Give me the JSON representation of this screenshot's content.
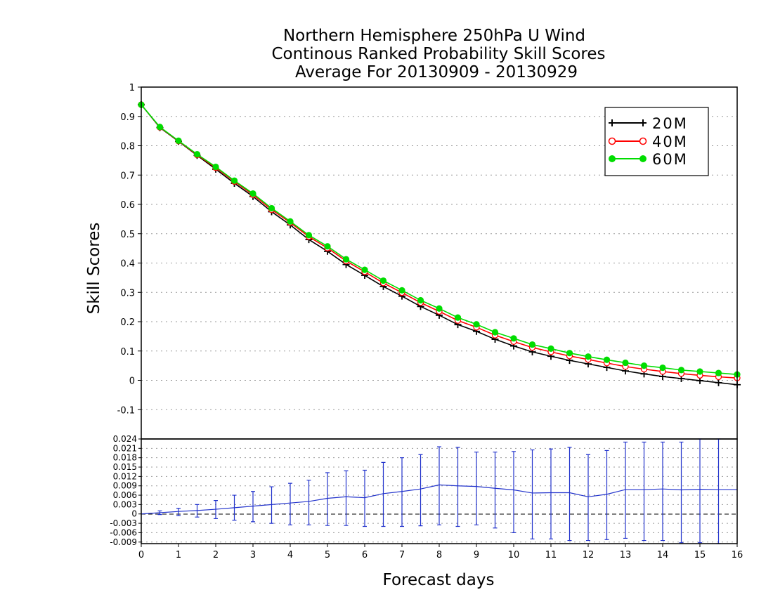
{
  "chart_data": [
    {
      "type": "line",
      "title": [
        "Northern Hemisphere 250hPa U Wind",
        "Continous Ranked Probability Skill Scores",
        "Average For 20130909 - 20130929"
      ],
      "xlabel": "Forecast days",
      "ylabel": "Skill Scores",
      "xlim": [
        0,
        16
      ],
      "ylim": [
        -0.2,
        1
      ],
      "yticks": [
        "1",
        "0.9",
        "0.8",
        "0.7",
        "0.6",
        "0.5",
        "0.4",
        "0.3",
        "0.2",
        "0.1",
        "0",
        "-0.1"
      ],
      "ytick_values": [
        1,
        0.9,
        0.8,
        0.7,
        0.6,
        0.5,
        0.4,
        0.3,
        0.2,
        0.1,
        0,
        -0.1
      ],
      "grid": true,
      "legend_position": "top-right",
      "x": [
        0,
        0.5,
        1,
        1.5,
        2,
        2.5,
        3,
        3.5,
        4,
        4.5,
        5,
        5.5,
        6,
        6.5,
        7,
        7.5,
        8,
        8.5,
        9,
        9.5,
        10,
        10.5,
        11,
        11.5,
        12,
        12.5,
        13,
        13.5,
        14,
        14.5,
        15,
        15.5,
        16
      ],
      "series": [
        {
          "name": "20M",
          "color": "#000000",
          "marker": "plus",
          "values": [
            0.94,
            0.862,
            0.815,
            0.767,
            0.72,
            0.672,
            0.627,
            0.575,
            0.53,
            0.48,
            0.44,
            0.395,
            0.358,
            0.32,
            0.287,
            0.252,
            0.222,
            0.19,
            0.167,
            0.14,
            0.117,
            0.097,
            0.082,
            0.068,
            0.056,
            0.044,
            0.032,
            0.022,
            0.013,
            0.006,
            -0.001,
            -0.008,
            -0.015
          ]
        },
        {
          "name": "40M",
          "color": "#ff0000",
          "marker": "open-circle",
          "values": [
            0.94,
            0.863,
            0.816,
            0.769,
            0.725,
            0.678,
            0.633,
            0.582,
            0.538,
            0.49,
            0.451,
            0.407,
            0.37,
            0.332,
            0.299,
            0.265,
            0.235,
            0.204,
            0.181,
            0.154,
            0.132,
            0.112,
            0.097,
            0.083,
            0.071,
            0.059,
            0.047,
            0.038,
            0.03,
            0.023,
            0.017,
            0.012,
            0.008
          ]
        },
        {
          "name": "60M",
          "color": "#00dd00",
          "marker": "filled-circle",
          "values": [
            0.94,
            0.864,
            0.817,
            0.771,
            0.728,
            0.681,
            0.637,
            0.587,
            0.542,
            0.495,
            0.457,
            0.413,
            0.377,
            0.34,
            0.307,
            0.273,
            0.245,
            0.214,
            0.191,
            0.164,
            0.143,
            0.122,
            0.108,
            0.093,
            0.081,
            0.07,
            0.06,
            0.05,
            0.043,
            0.035,
            0.03,
            0.025,
            0.02
          ]
        }
      ]
    },
    {
      "type": "line",
      "xlim": [
        0,
        16
      ],
      "ylim": [
        -0.0095,
        0.024
      ],
      "xticks": [
        "0",
        "1",
        "2",
        "3",
        "4",
        "5",
        "6",
        "7",
        "8",
        "9",
        "10",
        "11",
        "12",
        "13",
        "14",
        "15",
        "16"
      ],
      "yticks": [
        "0.024",
        "0.021",
        "0.018",
        "0.015",
        "0.012",
        "0.009",
        "0.006",
        "0.003",
        "0",
        "-0.003",
        "-0.006",
        "-0.009"
      ],
      "ytick_values": [
        0.024,
        0.021,
        0.018,
        0.015,
        0.012,
        0.009,
        0.006,
        0.003,
        0,
        -0.003,
        -0.006,
        -0.009
      ],
      "grid": true,
      "series": [
        {
          "color": "#2233cc",
          "x": [
            0,
            0.5,
            1,
            1.5,
            2,
            2.5,
            3,
            3.5,
            4,
            4.5,
            5,
            5.5,
            6,
            6.5,
            7,
            7.5,
            8,
            8.5,
            9,
            9.5,
            10,
            10.5,
            11,
            11.5,
            12,
            12.5,
            13,
            13.5,
            14,
            14.5,
            15,
            15.5,
            16
          ],
          "values": [
            0,
            0.0004,
            0.0008,
            0.0011,
            0.0015,
            0.002,
            0.0025,
            0.003,
            0.0035,
            0.004,
            0.005,
            0.0055,
            0.0052,
            0.0065,
            0.0072,
            0.008,
            0.0093,
            0.009,
            0.0088,
            0.0082,
            0.0077,
            0.0067,
            0.0068,
            0.0068,
            0.0055,
            0.0063,
            0.0078,
            0.0078,
            0.008,
            0.0077,
            0.0079,
            0.0078,
            0.0078
          ]
        }
      ],
      "error_bars": {
        "color": "#2233cc",
        "x": [
          0.5,
          1,
          1.5,
          2,
          2.5,
          3,
          3.5,
          4,
          4.5,
          5,
          5.5,
          6,
          6.5,
          7,
          7.5,
          8,
          8.5,
          9,
          9.5,
          10,
          10.5,
          11,
          11.5,
          12,
          12.5,
          13,
          13.5,
          14,
          14.5,
          15,
          15.5
        ],
        "low": [
          -0.0002,
          -0.0005,
          -0.001,
          -0.0015,
          -0.002,
          -0.0025,
          -0.003,
          -0.0035,
          -0.0035,
          -0.0037,
          -0.0037,
          -0.004,
          -0.004,
          -0.004,
          -0.0038,
          -0.0035,
          -0.004,
          -0.0035,
          -0.0045,
          -0.006,
          -0.008,
          -0.008,
          -0.0085,
          -0.0085,
          -0.0082,
          -0.0078,
          -0.0085,
          -0.0085,
          -0.0092,
          -0.0092,
          -0.0095
        ],
        "high": [
          0.001,
          0.0018,
          0.003,
          0.0043,
          0.006,
          0.0072,
          0.0087,
          0.0098,
          0.0108,
          0.0132,
          0.0138,
          0.014,
          0.0165,
          0.018,
          0.019,
          0.0215,
          0.0213,
          0.0198,
          0.0198,
          0.02,
          0.0205,
          0.0208,
          0.0213,
          0.019,
          0.0203,
          0.023,
          0.023,
          0.023,
          0.023,
          0.024,
          0.024
        ]
      }
    }
  ]
}
